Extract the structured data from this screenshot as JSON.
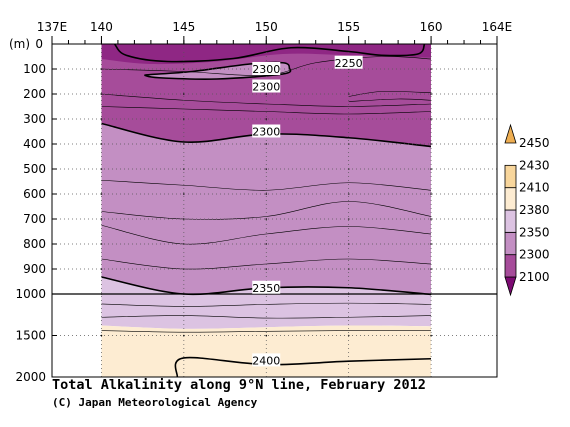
{
  "chart_data": {
    "type": "contour",
    "title": "Total Alkalinity along 9°N line, February 2012",
    "credit": "(C) Japan Meteorological Agency",
    "xlim": [
      137,
      164
    ],
    "x_ticks": [
      {
        "value": 137,
        "label": "137E"
      },
      {
        "value": 140,
        "label": "140"
      },
      {
        "value": 145,
        "label": "145"
      },
      {
        "value": 150,
        "label": "150"
      },
      {
        "value": 155,
        "label": "155"
      },
      {
        "value": 160,
        "label": "160"
      },
      {
        "value": 164,
        "label": "164E"
      }
    ],
    "ylabel": "(m)",
    "y_upper_ticks": [
      0,
      100,
      200,
      300,
      400,
      500,
      600,
      700,
      800,
      900,
      1000
    ],
    "y_lower_ticks": [
      1500,
      2000
    ],
    "y_ticks_labels": [
      "0",
      "100",
      "200",
      "300",
      "400",
      "500",
      "600",
      "700",
      "800",
      "900",
      "1000",
      "1500",
      "2000"
    ],
    "data_x_range": [
      140,
      160
    ],
    "legend": {
      "levels": [
        "2100",
        "2300",
        "2350",
        "2380",
        "2410",
        "2430",
        "2450"
      ],
      "colors": [
        "#7c0a72",
        "#a64c9a",
        "#c38fc3",
        "#dcc3e2",
        "#fdecd2",
        "#f8d69c",
        "#eeae52"
      ]
    },
    "contour_labels": [
      {
        "text": "2250",
        "lon": 155,
        "depth": 75
      },
      {
        "text": "2300",
        "lon": 150,
        "depth": 100
      },
      {
        "text": "2300",
        "lon": 150,
        "depth": 170
      },
      {
        "text": "2300",
        "lon": 150,
        "depth": 350
      },
      {
        "text": "2350",
        "lon": 150,
        "depth": 975
      },
      {
        "text": "2400",
        "lon": 150,
        "depth": 1800
      }
    ],
    "contours": [
      {
        "value": 2250,
        "bold": true,
        "points": [
          [
            140.8,
            0
          ],
          [
            141.5,
            45
          ],
          [
            144,
            70
          ],
          [
            148,
            58
          ],
          [
            151.5,
            15
          ],
          [
            155,
            30
          ],
          [
            157,
            45
          ],
          [
            159.2,
            40
          ],
          [
            159.6,
            0
          ]
        ]
      },
      {
        "value": 2300,
        "bold": true,
        "points": [
          [
            142.6,
            125
          ],
          [
            143.5,
            135
          ],
          [
            147,
            140
          ],
          [
            151,
            120
          ],
          [
            151.4,
            95
          ],
          [
            151,
            75
          ],
          [
            149,
            80
          ],
          [
            145.5,
            110
          ],
          [
            143,
            122
          ],
          [
            142.6,
            125
          ]
        ]
      },
      {
        "value": 2300,
        "bold": true,
        "points": [
          [
            140,
            318
          ],
          [
            145,
            392
          ],
          [
            150,
            360
          ],
          [
            155,
            375
          ],
          [
            160,
            410
          ]
        ]
      },
      {
        "value": 2350,
        "bold": true,
        "points": [
          [
            140,
            932
          ],
          [
            145,
            1000
          ],
          [
            150,
            975
          ],
          [
            155,
            975
          ],
          [
            160,
            1005
          ]
        ]
      },
      {
        "value": 2400,
        "bold": true,
        "points": [
          [
            144.6,
            2000
          ],
          [
            145,
            1770
          ],
          [
            150,
            1850
          ],
          [
            155,
            1810
          ],
          [
            160,
            1780
          ]
        ]
      }
    ],
    "contours_thin": [
      [
        [
          140,
          100
        ],
        [
          145,
          110
        ],
        [
          150,
          125
        ],
        [
          153,
          75
        ],
        [
          157,
          50
        ],
        [
          160,
          60
        ]
      ],
      [
        [
          140,
          200
        ],
        [
          145,
          225
        ],
        [
          150,
          240
        ],
        [
          155,
          250
        ],
        [
          160,
          240
        ]
      ],
      [
        [
          140,
          250
        ],
        [
          145,
          260
        ],
        [
          150,
          270
        ],
        [
          155,
          280
        ],
        [
          160,
          270
        ]
      ],
      [
        [
          155,
          210
        ],
        [
          157,
          190
        ],
        [
          160,
          195
        ]
      ],
      [
        [
          155,
          230
        ],
        [
          158,
          220
        ],
        [
          160,
          225
        ]
      ],
      [
        [
          140,
          545
        ],
        [
          145,
          565
        ],
        [
          150,
          585
        ],
        [
          155,
          555
        ],
        [
          160,
          585
        ]
      ],
      [
        [
          140,
          670
        ],
        [
          145,
          700
        ],
        [
          150,
          690
        ],
        [
          155,
          630
        ],
        [
          160,
          690
        ]
      ],
      [
        [
          140,
          725
        ],
        [
          145,
          800
        ],
        [
          150,
          760
        ],
        [
          155,
          730
        ],
        [
          160,
          760
        ]
      ],
      [
        [
          140,
          860
        ],
        [
          145,
          900
        ],
        [
          150,
          880
        ],
        [
          155,
          860
        ],
        [
          160,
          880
        ]
      ],
      [
        [
          140,
          1120
        ],
        [
          145,
          1150
        ],
        [
          150,
          1125
        ],
        [
          155,
          1110
        ],
        [
          160,
          1125
        ]
      ],
      [
        [
          140,
          1280
        ],
        [
          145,
          1260
        ],
        [
          150,
          1290
        ],
        [
          155,
          1280
        ],
        [
          160,
          1260
        ]
      ],
      [
        [
          140,
          1440
        ],
        [
          145,
          1460
        ],
        [
          150,
          1450
        ],
        [
          155,
          1440
        ],
        [
          160,
          1440
        ]
      ]
    ]
  }
}
